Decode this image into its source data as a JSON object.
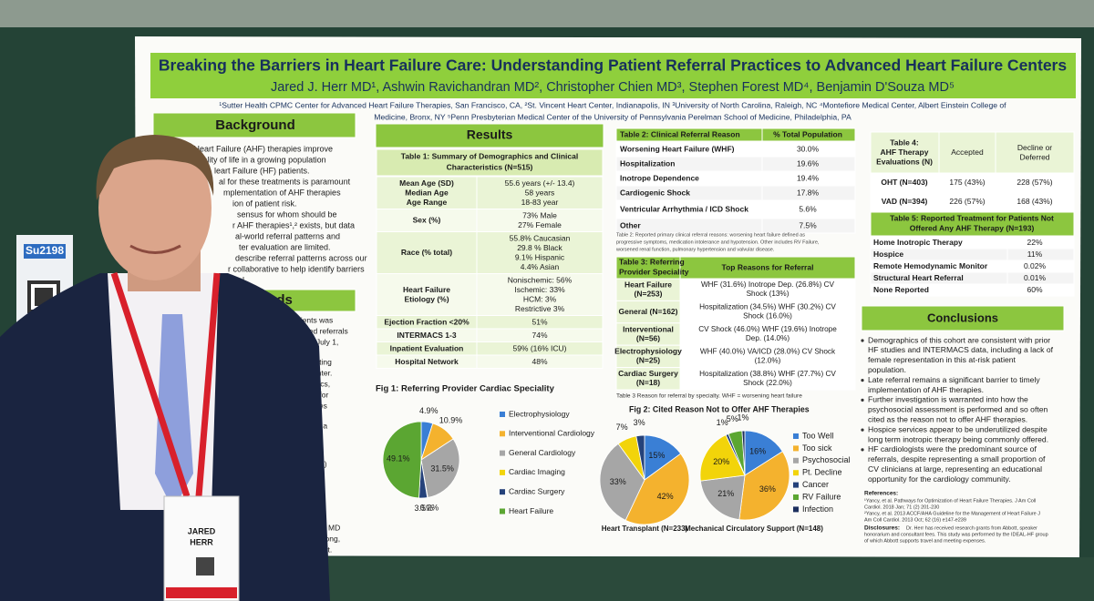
{
  "booth_sign": "Su2198",
  "badge": {
    "first": "JARED",
    "last": "HERR"
  },
  "poster": {
    "title": "Breaking the Barriers in Heart Failure Care: Understanding Patient Referral Practices to Advanced Heart Failure Centers",
    "authors": "Jared J. Herr MD¹, Ashwin Ravichandran MD², Christopher Chien MD³, Stephen Forest MD⁴, Benjamin D'Souza MD⁵",
    "affiliations": [
      "¹Sutter Health CPMC Center for Advanced Heart Failure Therapies, San Francisco, CA, ²St. Vincent Heart Center, Indianapolis, IN ³University of North Carolina, Raleigh, NC ⁴Montefiore Medical Center, Albert Einstein College of",
      "Medicine, Bronx, NY ⁵Penn Presbyterian Medical Center of the University of Pennsylvania Perelman School of Medicine, Philadelphia, PA"
    ],
    "background": {
      "heading": "Background",
      "lines": [
        "ed Heart Failure (AHF) therapies improve",
        "d quality of life in a growing population",
        "leart Failure (HF) patients.",
        "al for these treatments is paramount",
        "mplementation of AHF therapies",
        "ion of patient risk.",
        "sensus for whom should be",
        "r AHF therapies¹,² exists, but data",
        "al-world referral patterns and",
        "ter evaluation are limited.",
        "describe referral patterns across our",
        "r collaborative to help identify barriers",
        "rral."
      ]
    },
    "methods": {
      "heading": "Methods",
      "lines": [
        "patients was",
        "mpleted referrals",
        "prior to July 1,",
        "participating",
        "ating center.",
        "acteristics,",
        "reason for",
        "outcomes",
        "piled into a",
        "cal Center (NY)",
        "c (OH)",
        "CA)",
        "gton Hospital",
        "following",
        "Anuradha Lala, MD",
        "chael Zen-Yu Tong,",
        "ns to this project."
      ]
    },
    "results_heading": "Results",
    "table1": {
      "title": [
        "Table 1: Summary of Demographics and Clinical",
        "Characteristics (N=515)"
      ],
      "rows": [
        {
          "label": [
            "Mean Age (SD)",
            "Median Age",
            "Age Range"
          ],
          "values": [
            "55.6 years (+/- 13.4)",
            "58 years",
            "18-83 year"
          ]
        },
        {
          "label": [
            "Sex (%)"
          ],
          "values": [
            "73% Male",
            "27% Female"
          ]
        },
        {
          "label": [
            "Race (% total)"
          ],
          "values": [
            "55.8% Caucasian",
            "29.8 % Black",
            "9.1% Hispanic",
            "4.4% Asian"
          ]
        },
        {
          "label": [
            "Heart Failure",
            "Etiology (%)"
          ],
          "values": [
            "Nonischemic: 56%",
            "Ischemic: 33%",
            "HCM: 3%",
            "Restrictive 3%"
          ]
        },
        {
          "label": [
            "Ejection Fraction <20%"
          ],
          "values": [
            "51%"
          ]
        },
        {
          "label": [
            "INTERMACS 1-3"
          ],
          "values": [
            "74%"
          ]
        },
        {
          "label": [
            "Inpatient Evaluation"
          ],
          "values": [
            "59% (16% ICU)"
          ]
        },
        {
          "label": [
            "Hospital Network"
          ],
          "values": [
            "48%"
          ]
        }
      ]
    },
    "table2": {
      "headers": [
        "Table 2: Clinical Referral Reason",
        "% Total Population"
      ],
      "rows": [
        [
          "Worsening Heart Failure (WHF)",
          "30.0%"
        ],
        [
          "Hospitalization",
          "19.6%"
        ],
        [
          "Inotrope Dependence",
          "19.4%"
        ],
        [
          "Cardiogenic Shock",
          "17.8%"
        ],
        [
          "Ventricular Arrhythmia / ICD Shock",
          "5.6%"
        ],
        [
          "Other",
          "7.5%"
        ]
      ],
      "caption": [
        "Table 2: Reported primary clinical referral reasons: worsening heart failure defined as",
        "progressive symptoms, medication intolerance and hypotension. Other includes RV Failure,",
        "worsened renal function, pulmonary hypertension and valvular disease."
      ]
    },
    "table3": {
      "headers": [
        [
          "Table 3: Referring",
          "Provider Speciality"
        ],
        [
          "Top Reasons for Referral"
        ]
      ],
      "rows": [
        {
          "label": [
            "Heart Failure",
            "(N=253)"
          ],
          "reasons": [
            "WHF (31.6%) Inotrope Dep. (26.8%) CV",
            "Shock (13%)"
          ]
        },
        {
          "label": [
            "General (N=162)"
          ],
          "reasons": [
            "Hospitalization (34.5%) WHF (30.2%) CV",
            "Shock (16.0%)"
          ]
        },
        {
          "label": [
            "Interventional",
            "(N=56)"
          ],
          "reasons": [
            "CV Shock (46.0%) WHF (19.6%) Inotrope",
            "Dep. (14.0%)"
          ]
        },
        {
          "label": [
            "Electrophysiology",
            "(N=25)"
          ],
          "reasons": [
            "WHF (40.0%) VA/ICD (28.0%) CV Shock",
            "(12.0%)"
          ]
        },
        {
          "label": [
            "Cardiac Surgery",
            "(N=18)"
          ],
          "reasons": [
            "Hospitalization (38.8%) WHF (27.7%) CV",
            "Shock (22.0%)"
          ]
        }
      ],
      "caption": "Table 3  Reason for referral by specialty. WHF = worsening heart failure"
    },
    "table4": {
      "headers": [
        [
          "Table 4:",
          "AHF Therapy",
          "Evaluations (N)"
        ],
        [
          "Accepted"
        ],
        [
          "Decline or",
          "Deferred"
        ]
      ],
      "rows": [
        [
          "OHT (N=403)",
          "175 (43%)",
          "228 (57%)"
        ],
        [
          "VAD (N=394)",
          "226 (57%)",
          "168 (43%)"
        ]
      ]
    },
    "table5": {
      "title": [
        "Table 5: Reported Treatment for Patients Not",
        "Offered Any AHF Therapy (N=193)"
      ],
      "rows": [
        [
          "Home Inotropic Therapy",
          "22%"
        ],
        [
          "Hospice",
          "11%"
        ],
        [
          "Remote Hemodynamic Monitor",
          "0.02%"
        ],
        [
          "Structural Heart Referral",
          "0.01%"
        ],
        [
          "None Reported",
          "60%"
        ]
      ]
    },
    "conclusions": {
      "heading": "Conclusions",
      "bullets": [
        [
          "Demographics of this cohort are consistent with prior",
          "HF studies and INTERMACS data, including a lack of",
          "female representation in this at-risk patient",
          "population."
        ],
        [
          "Late referral remains a significant barrier to timely",
          "implementation of AHF therapies."
        ],
        [
          "Further investigation is warranted into how the",
          "psychosocial assessment is performed and so often",
          "cited as the reason not to offer AHF therapies."
        ],
        [
          "Hospice services appear to be underutilized despite",
          "long term inotropic therapy being commonly offered."
        ],
        [
          "HF cardiologists were the predominant source of",
          "referrals, despite representing a small proportion of",
          "CV clinicians at large, representing an educational",
          "opportunity for the cardiology community."
        ]
      ]
    },
    "references": {
      "heading": "References:",
      "lines": [
        "¹Yancy, et al. Pathways for Optimization of Heart Failure Therapies. J Am Coll",
        "Cardiol. 2018 Jan; 71 (2) 201-230",
        "²Yancy, et al. 2013 ACCF/AHA Guideline for the Management of Heart Failure J",
        "Am Coll Cardiol. 2013 Oct; 62 (16) e147-e239"
      ]
    },
    "disclosures": {
      "heading": "Disclosures:",
      "lines": [
        "Dr. Herr has received research grants from Abbott, speaker",
        "honorarium and consultant fees. This study was performed by the IDEAL-HF group",
        "of which Abbott supports travel and meeting expenses."
      ]
    }
  },
  "chart_data": [
    {
      "type": "pie",
      "title": "Fig 1: Referring Provider Cardiac Speciality",
      "categories": [
        "Electrophysiology",
        "Interventional Cardiology",
        "General Cardiology",
        "Cardiac Imaging",
        "Cardiac Surgery",
        "Heart Failure"
      ],
      "colors": [
        "#3a7fd5",
        "#f4b22e",
        "#a6a6a6",
        "#f2d40a",
        "#25427a",
        "#5ba632"
      ],
      "values": [
        4.9,
        10.9,
        31.5,
        0.2,
        3.5,
        49.1
      ],
      "value_labels": [
        "4.9%",
        "10.9%",
        "31.5%",
        "0.2%",
        "3.5%",
        "49.1%"
      ]
    },
    {
      "type": "pie",
      "title": "Fig 2: Cited Reason Not to Offer AHF Therapies",
      "categories": [
        "Too Well",
        "Too sick",
        "Psychosocial",
        "Pt. Decline",
        "Cancer",
        "RV Failure",
        "Infection"
      ],
      "colors": [
        "#3a7fd5",
        "#f4b22e",
        "#a6a6a6",
        "#f2d40a",
        "#25427a",
        "#5ba632",
        "#1c2f5e"
      ],
      "series": [
        {
          "name": "Heart Transplant (N=233)",
          "values": [
            15,
            42,
            33,
            7,
            3,
            null,
            null
          ],
          "value_labels": [
            "15%",
            "42%",
            "33%",
            "7%",
            "3%",
            null,
            null
          ]
        },
        {
          "name": "Mechanical Circulatory Support (N=148)",
          "values": [
            16,
            36,
            21,
            20,
            1,
            5,
            1
          ],
          "value_labels": [
            "16%",
            "36%",
            "21%",
            "20%",
            "1%",
            "5%",
            "1%"
          ]
        }
      ]
    }
  ]
}
